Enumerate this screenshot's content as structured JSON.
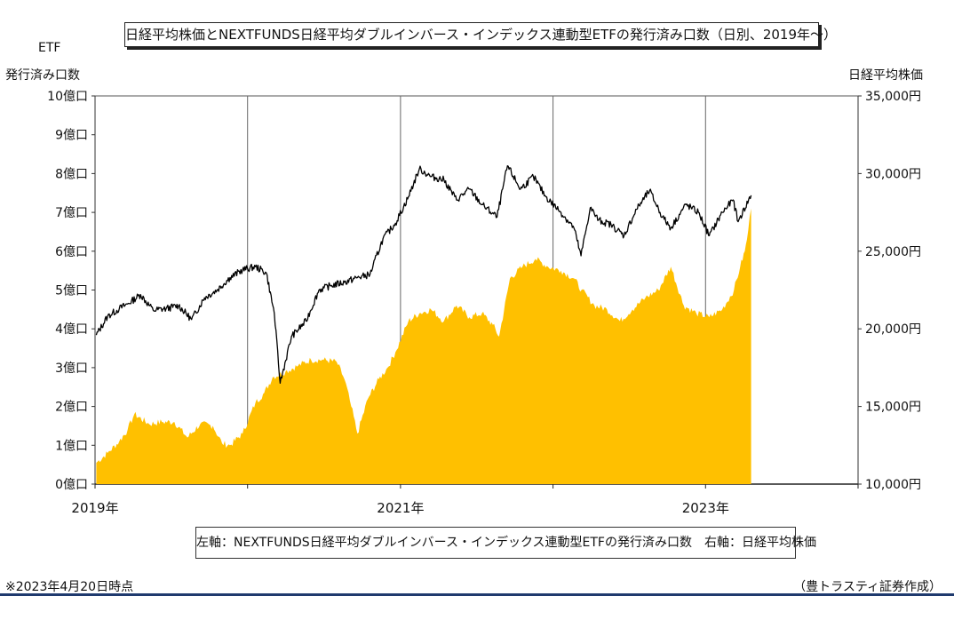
{
  "chart_data": {
    "type": "area",
    "title": "日経平均株価とNEXTFUNDS日経平均ダブルインバース・インデックス連動型ETFの発行済み口数（日別、2019年～）",
    "left_axis": {
      "label_line1": "ETF",
      "label_line2": "発行済み口数",
      "range": [
        0,
        10
      ],
      "unit": "億口",
      "ticks": [
        "0億口",
        "1億口",
        "2億口",
        "3億口",
        "4億口",
        "5億口",
        "6億口",
        "7億口",
        "8億口",
        "9億口",
        "10億口"
      ]
    },
    "right_axis": {
      "label": "日経平均株価",
      "range": [
        10000,
        35000
      ],
      "ticks": [
        "10,000円",
        "15,000円",
        "20,000円",
        "25,000円",
        "30,000円",
        "35,000円"
      ]
    },
    "x_axis": {
      "range": [
        "2019-01-01",
        "2024-01-01"
      ],
      "tick_labels": [
        "2019年",
        "2021年",
        "2023年"
      ],
      "grid": "yearly vertical lines"
    },
    "series": [
      {
        "name": "NEXTFUNDS日経平均ダブルインバース・インデックス連動型ETFの発行済み口数",
        "axis": "left",
        "style": "area",
        "color": "#FFC000",
        "points": [
          [
            "2019-01-04",
            0.55
          ],
          [
            "2019-01-31",
            0.8
          ],
          [
            "2019-02-28",
            1.1
          ],
          [
            "2019-03-20",
            1.4
          ],
          [
            "2019-04-05",
            1.8
          ],
          [
            "2019-05-10",
            1.55
          ],
          [
            "2019-06-10",
            1.6
          ],
          [
            "2019-07-10",
            1.6
          ],
          [
            "2019-08-10",
            1.2
          ],
          [
            "2019-09-10",
            1.55
          ],
          [
            "2019-10-10",
            1.5
          ],
          [
            "2019-11-01",
            1.05
          ],
          [
            "2019-11-20",
            1.0
          ],
          [
            "2019-12-20",
            1.3
          ],
          [
            "2020-01-20",
            2.1
          ],
          [
            "2020-02-10",
            2.35
          ],
          [
            "2020-03-01",
            2.75
          ],
          [
            "2020-04-01",
            2.9
          ],
          [
            "2020-05-01",
            3.05
          ],
          [
            "2020-06-01",
            3.2
          ],
          [
            "2020-07-01",
            3.2
          ],
          [
            "2020-08-01",
            3.15
          ],
          [
            "2020-08-20",
            2.7
          ],
          [
            "2020-09-05",
            2.0
          ],
          [
            "2020-09-20",
            1.3
          ],
          [
            "2020-10-15",
            2.2
          ],
          [
            "2020-11-10",
            2.7
          ],
          [
            "2020-12-01",
            3.0
          ],
          [
            "2020-12-20",
            3.4
          ],
          [
            "2021-01-20",
            4.2
          ],
          [
            "2021-02-15",
            4.4
          ],
          [
            "2021-03-15",
            4.5
          ],
          [
            "2021-04-15",
            4.2
          ],
          [
            "2021-05-15",
            4.6
          ],
          [
            "2021-06-15",
            4.3
          ],
          [
            "2021-07-15",
            4.4
          ],
          [
            "2021-08-10",
            4.1
          ],
          [
            "2021-08-25",
            3.8
          ],
          [
            "2021-09-20",
            5.3
          ],
          [
            "2021-10-20",
            5.6
          ],
          [
            "2021-11-20",
            5.8
          ],
          [
            "2021-12-20",
            5.6
          ],
          [
            "2022-01-20",
            5.5
          ],
          [
            "2022-02-20",
            5.3
          ],
          [
            "2022-03-10",
            5.0
          ],
          [
            "2022-04-10",
            4.6
          ],
          [
            "2022-05-10",
            4.5
          ],
          [
            "2022-06-10",
            4.2
          ],
          [
            "2022-07-10",
            4.5
          ],
          [
            "2022-08-10",
            4.8
          ],
          [
            "2022-09-10",
            5.0
          ],
          [
            "2022-10-10",
            5.6
          ],
          [
            "2022-11-10",
            4.6
          ],
          [
            "2022-12-10",
            4.4
          ],
          [
            "2023-01-10",
            4.3
          ],
          [
            "2023-02-10",
            4.5
          ],
          [
            "2023-03-10",
            5.0
          ],
          [
            "2023-03-25",
            5.6
          ],
          [
            "2023-04-05",
            6.0
          ],
          [
            "2023-04-10",
            6.3
          ],
          [
            "2023-04-20",
            7.1
          ]
        ]
      },
      {
        "name": "日経平均株価",
        "axis": "right",
        "style": "line",
        "color": "#000000",
        "points": [
          [
            "2019-01-04",
            19600
          ],
          [
            "2019-01-31",
            20800
          ],
          [
            "2019-02-28",
            21300
          ],
          [
            "2019-03-20",
            21600
          ],
          [
            "2019-04-20",
            22200
          ],
          [
            "2019-05-20",
            21200
          ],
          [
            "2019-06-20",
            21300
          ],
          [
            "2019-07-20",
            21500
          ],
          [
            "2019-08-20",
            20600
          ],
          [
            "2019-09-20",
            22000
          ],
          [
            "2019-10-20",
            22500
          ],
          [
            "2019-11-20",
            23300
          ],
          [
            "2019-12-20",
            23800
          ],
          [
            "2020-01-20",
            24000
          ],
          [
            "2020-02-15",
            23600
          ],
          [
            "2020-03-05",
            21000
          ],
          [
            "2020-03-19",
            16500
          ],
          [
            "2020-04-15",
            19500
          ],
          [
            "2020-05-20",
            20500
          ],
          [
            "2020-06-20",
            22500
          ],
          [
            "2020-07-20",
            22800
          ],
          [
            "2020-08-20",
            23000
          ],
          [
            "2020-09-20",
            23300
          ],
          [
            "2020-10-20",
            23500
          ],
          [
            "2020-11-20",
            25800
          ],
          [
            "2020-12-20",
            26800
          ],
          [
            "2021-01-20",
            28500
          ],
          [
            "2021-02-15",
            30300
          ],
          [
            "2021-03-15",
            29800
          ],
          [
            "2021-04-15",
            29600
          ],
          [
            "2021-05-15",
            28300
          ],
          [
            "2021-06-15",
            29000
          ],
          [
            "2021-07-15",
            28000
          ],
          [
            "2021-08-20",
            27200
          ],
          [
            "2021-09-14",
            30500
          ],
          [
            "2021-10-15",
            29000
          ],
          [
            "2021-11-15",
            29800
          ],
          [
            "2021-12-15",
            28500
          ],
          [
            "2022-01-20",
            27500
          ],
          [
            "2022-02-20",
            26500
          ],
          [
            "2022-03-09",
            24700
          ],
          [
            "2022-03-31",
            27800
          ],
          [
            "2022-04-20",
            27000
          ],
          [
            "2022-05-20",
            26700
          ],
          [
            "2022-06-20",
            26000
          ],
          [
            "2022-07-20",
            27700
          ],
          [
            "2022-08-20",
            28900
          ],
          [
            "2022-09-20",
            27200
          ],
          [
            "2022-10-10",
            26500
          ],
          [
            "2022-11-15",
            28000
          ],
          [
            "2022-12-15",
            27500
          ],
          [
            "2023-01-10",
            26000
          ],
          [
            "2023-02-10",
            27500
          ],
          [
            "2023-03-08",
            28300
          ],
          [
            "2023-03-20",
            26900
          ],
          [
            "2023-04-20",
            28600
          ]
        ]
      }
    ],
    "legend": "左軸：NEXTFUNDS日経平均ダブルインバース・インデックス連動型ETFの発行済み口数　右軸：日経平均株価"
  },
  "footer": {
    "note": "※2023年4月20日時点",
    "credit": "（豊トラスティ証券作成）"
  },
  "colors": {
    "area": "#FFC000",
    "line": "#000000",
    "footer_rule": "#1f3a6e"
  }
}
